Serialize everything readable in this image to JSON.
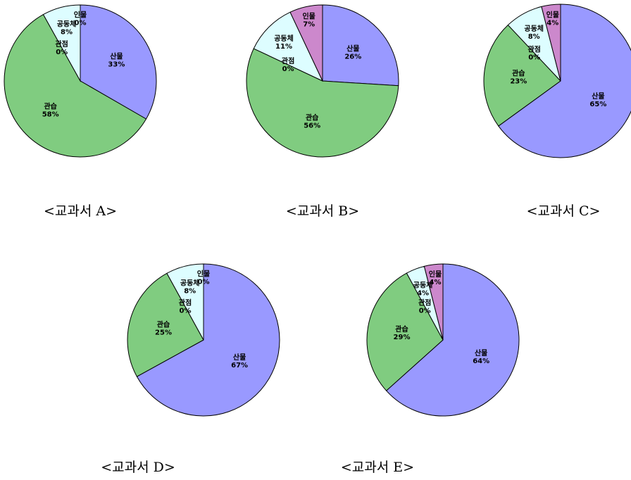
{
  "colors": {
    "산물": "#9999ff",
    "관습": "#80cc80",
    "관점": "#80cc80",
    "공동체": "#ddfdff",
    "인물": "#cc88cc",
    "outline": "#000000"
  },
  "chart_data": [
    {
      "type": "pie",
      "caption": "<교과서 A>",
      "slices": [
        {
          "label": "산물",
          "value": 33,
          "pct": "33%"
        },
        {
          "label": "관습",
          "value": 58,
          "pct": "58%"
        },
        {
          "label": "관점",
          "value": 0,
          "pct": "0%"
        },
        {
          "label": "공동체",
          "value": 8,
          "pct": "8%"
        },
        {
          "label": "인물",
          "value": 0,
          "pct": "0%"
        }
      ]
    },
    {
      "type": "pie",
      "caption": "<교과서 B>",
      "slices": [
        {
          "label": "산물",
          "value": 26,
          "pct": "26%"
        },
        {
          "label": "관습",
          "value": 56,
          "pct": "56%"
        },
        {
          "label": "관점",
          "value": 0,
          "pct": "0%"
        },
        {
          "label": "공동체",
          "value": 11,
          "pct": "11%"
        },
        {
          "label": "인물",
          "value": 7,
          "pct": "7%"
        }
      ]
    },
    {
      "type": "pie",
      "caption": "<교과서 C>",
      "slices": [
        {
          "label": "산물",
          "value": 65,
          "pct": "65%"
        },
        {
          "label": "관습",
          "value": 23,
          "pct": "23%"
        },
        {
          "label": "관점",
          "value": 0,
          "pct": "0%"
        },
        {
          "label": "공동체",
          "value": 8,
          "pct": "8%"
        },
        {
          "label": "인물",
          "value": 4,
          "pct": "4%"
        }
      ]
    },
    {
      "type": "pie",
      "caption": "<교과서 D>",
      "slices": [
        {
          "label": "산물",
          "value": 67,
          "pct": "67%"
        },
        {
          "label": "관습",
          "value": 25,
          "pct": "25%"
        },
        {
          "label": "관점",
          "value": 0,
          "pct": "0%"
        },
        {
          "label": "공동체",
          "value": 8,
          "pct": "8%"
        },
        {
          "label": "인물",
          "value": 0,
          "pct": "0%"
        }
      ]
    },
    {
      "type": "pie",
      "caption": "<교과서 E>",
      "slices": [
        {
          "label": "산물",
          "value": 64,
          "pct": "64%"
        },
        {
          "label": "관습",
          "value": 29,
          "pct": "29%"
        },
        {
          "label": "관점",
          "value": 0,
          "pct": "0%"
        },
        {
          "label": "공동체",
          "value": 4,
          "pct": "4%"
        },
        {
          "label": "인물",
          "value": 4,
          "pct": "4%"
        }
      ]
    }
  ]
}
